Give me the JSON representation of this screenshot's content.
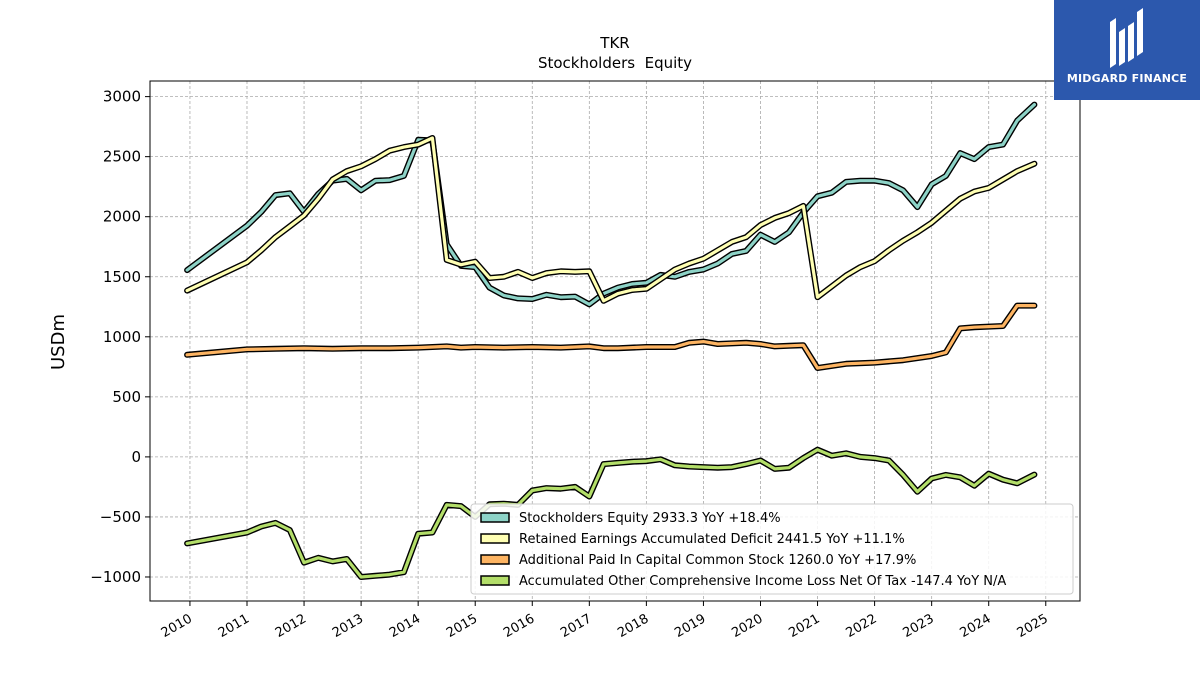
{
  "brand": {
    "name": "MIDGARD FINANCE",
    "bg_color": "#2c58ad"
  },
  "chart_data": {
    "type": "line",
    "title": "TKR",
    "subtitle": "Stockholders  Equity",
    "xlabel": "",
    "ylabel": "USDm",
    "xlim": [
      2009.3,
      2025.6
    ],
    "ylim": [
      -1200,
      3130
    ],
    "x_ticks": [
      "2010",
      "2011",
      "2012",
      "2013",
      "2014",
      "2015",
      "2016",
      "2017",
      "2018",
      "2019",
      "2020",
      "2021",
      "2022",
      "2023",
      "2024",
      "2025"
    ],
    "y_ticks": [
      3000,
      2500,
      2000,
      1500,
      1000,
      500,
      0,
      -500,
      -1000
    ],
    "y_tick_labels": [
      "3000",
      "2500",
      "2000",
      "1500",
      "1000",
      "500",
      "0",
      "−500",
      "−1000"
    ],
    "grid": true,
    "legend_position": "lower-right",
    "series": [
      {
        "name": "Stockholders Equity",
        "legend_label": "Stockholders Equity  2933.3 YoY +18.4%",
        "color": "#8dd3c7",
        "points": [
          [
            2009.95,
            1555
          ],
          [
            2011.0,
            1925
          ],
          [
            2011.25,
            2040
          ],
          [
            2011.5,
            2180
          ],
          [
            2011.75,
            2195
          ],
          [
            2012.0,
            2040
          ],
          [
            2012.25,
            2190
          ],
          [
            2012.5,
            2300
          ],
          [
            2012.75,
            2315
          ],
          [
            2013.0,
            2220
          ],
          [
            2013.25,
            2300
          ],
          [
            2013.5,
            2305
          ],
          [
            2013.75,
            2340
          ],
          [
            2014.0,
            2640
          ],
          [
            2014.25,
            2635
          ],
          [
            2014.5,
            1770
          ],
          [
            2014.75,
            1590
          ],
          [
            2015.0,
            1580
          ],
          [
            2015.25,
            1410
          ],
          [
            2015.5,
            1345
          ],
          [
            2015.75,
            1320
          ],
          [
            2016.0,
            1315
          ],
          [
            2016.25,
            1350
          ],
          [
            2016.5,
            1330
          ],
          [
            2016.75,
            1335
          ],
          [
            2017.0,
            1270
          ],
          [
            2017.25,
            1360
          ],
          [
            2017.5,
            1410
          ],
          [
            2017.75,
            1440
          ],
          [
            2018.0,
            1450
          ],
          [
            2018.25,
            1515
          ],
          [
            2018.5,
            1500
          ],
          [
            2018.75,
            1540
          ],
          [
            2019.0,
            1560
          ],
          [
            2019.25,
            1610
          ],
          [
            2019.5,
            1690
          ],
          [
            2019.75,
            1715
          ],
          [
            2020.0,
            1850
          ],
          [
            2020.25,
            1790
          ],
          [
            2020.5,
            1870
          ],
          [
            2020.75,
            2035
          ],
          [
            2021.0,
            2170
          ],
          [
            2021.25,
            2200
          ],
          [
            2021.5,
            2290
          ],
          [
            2021.75,
            2300
          ],
          [
            2022.0,
            2300
          ],
          [
            2022.25,
            2280
          ],
          [
            2022.5,
            2220
          ],
          [
            2022.75,
            2080
          ],
          [
            2023.0,
            2270
          ],
          [
            2023.25,
            2340
          ],
          [
            2023.5,
            2530
          ],
          [
            2023.75,
            2480
          ],
          [
            2024.0,
            2580
          ],
          [
            2024.25,
            2600
          ],
          [
            2024.5,
            2800
          ],
          [
            2024.8,
            2933.3
          ]
        ]
      },
      {
        "name": "Retained Earnings Accumulated Deficit",
        "legend_label": "Retained Earnings Accumulated Deficit  2441.5 YoY +11.1%",
        "color": "#ffffb3",
        "points": [
          [
            2009.95,
            1385
          ],
          [
            2011.0,
            1620
          ],
          [
            2011.25,
            1720
          ],
          [
            2011.5,
            1830
          ],
          [
            2011.75,
            1920
          ],
          [
            2012.0,
            2010
          ],
          [
            2012.25,
            2150
          ],
          [
            2012.5,
            2310
          ],
          [
            2012.75,
            2380
          ],
          [
            2013.0,
            2420
          ],
          [
            2013.25,
            2480
          ],
          [
            2013.5,
            2550
          ],
          [
            2013.75,
            2580
          ],
          [
            2014.0,
            2600
          ],
          [
            2014.25,
            2655
          ],
          [
            2014.5,
            1640
          ],
          [
            2014.75,
            1600
          ],
          [
            2015.0,
            1625
          ],
          [
            2015.25,
            1490
          ],
          [
            2015.5,
            1500
          ],
          [
            2015.75,
            1540
          ],
          [
            2016.0,
            1490
          ],
          [
            2016.25,
            1530
          ],
          [
            2016.5,
            1545
          ],
          [
            2016.75,
            1540
          ],
          [
            2017.0,
            1545
          ],
          [
            2017.25,
            1300
          ],
          [
            2017.5,
            1360
          ],
          [
            2017.75,
            1390
          ],
          [
            2018.0,
            1400
          ],
          [
            2018.25,
            1480
          ],
          [
            2018.5,
            1560
          ],
          [
            2018.75,
            1610
          ],
          [
            2019.0,
            1650
          ],
          [
            2019.25,
            1720
          ],
          [
            2019.5,
            1790
          ],
          [
            2019.75,
            1830
          ],
          [
            2020.0,
            1930
          ],
          [
            2020.25,
            1990
          ],
          [
            2020.5,
            2030
          ],
          [
            2020.75,
            2090
          ],
          [
            2021.0,
            1330
          ],
          [
            2021.25,
            1420
          ],
          [
            2021.5,
            1510
          ],
          [
            2021.75,
            1580
          ],
          [
            2022.0,
            1630
          ],
          [
            2022.25,
            1720
          ],
          [
            2022.5,
            1800
          ],
          [
            2022.75,
            1870
          ],
          [
            2023.0,
            1950
          ],
          [
            2023.25,
            2050
          ],
          [
            2023.5,
            2150
          ],
          [
            2023.75,
            2210
          ],
          [
            2024.0,
            2240
          ],
          [
            2024.25,
            2310
          ],
          [
            2024.5,
            2380
          ],
          [
            2024.8,
            2441.5
          ]
        ]
      },
      {
        "name": "Additional Paid In Capital Common Stock",
        "legend_label": "Additional Paid In Capital Common Stock  1260.0 YoY +17.9%",
        "color": "#fdb462",
        "points": [
          [
            2009.95,
            850
          ],
          [
            2011.0,
            895
          ],
          [
            2011.5,
            900
          ],
          [
            2012.0,
            905
          ],
          [
            2012.5,
            900
          ],
          [
            2013.0,
            905
          ],
          [
            2013.5,
            905
          ],
          [
            2014.0,
            910
          ],
          [
            2014.5,
            920
          ],
          [
            2014.75,
            910
          ],
          [
            2015.0,
            915
          ],
          [
            2015.5,
            910
          ],
          [
            2016.0,
            915
          ],
          [
            2016.5,
            910
          ],
          [
            2017.0,
            920
          ],
          [
            2017.25,
            905
          ],
          [
            2017.5,
            905
          ],
          [
            2018.0,
            915
          ],
          [
            2018.5,
            915
          ],
          [
            2018.75,
            950
          ],
          [
            2019.0,
            960
          ],
          [
            2019.25,
            940
          ],
          [
            2019.5,
            945
          ],
          [
            2019.75,
            950
          ],
          [
            2020.0,
            940
          ],
          [
            2020.25,
            920
          ],
          [
            2020.5,
            925
          ],
          [
            2020.75,
            930
          ],
          [
            2021.0,
            740
          ],
          [
            2021.5,
            775
          ],
          [
            2022.0,
            785
          ],
          [
            2022.5,
            805
          ],
          [
            2023.0,
            840
          ],
          [
            2023.25,
            870
          ],
          [
            2023.5,
            1070
          ],
          [
            2023.75,
            1080
          ],
          [
            2024.0,
            1085
          ],
          [
            2024.25,
            1090
          ],
          [
            2024.5,
            1260
          ],
          [
            2024.8,
            1260
          ]
        ]
      },
      {
        "name": "Accumulated Other Comprehensive Income Loss Net Of Tax",
        "legend_label": "Accumulated Other Comprehensive Income Loss Net Of Tax  -147.4 YoY N/A",
        "color": "#b3de69",
        "points": [
          [
            2009.95,
            -720
          ],
          [
            2011.0,
            -630
          ],
          [
            2011.25,
            -580
          ],
          [
            2011.5,
            -550
          ],
          [
            2011.75,
            -610
          ],
          [
            2012.0,
            -880
          ],
          [
            2012.25,
            -840
          ],
          [
            2012.5,
            -870
          ],
          [
            2012.75,
            -850
          ],
          [
            2013.0,
            -1000
          ],
          [
            2013.25,
            -990
          ],
          [
            2013.5,
            -980
          ],
          [
            2013.75,
            -960
          ],
          [
            2014.0,
            -640
          ],
          [
            2014.25,
            -630
          ],
          [
            2014.5,
            -400
          ],
          [
            2014.75,
            -410
          ],
          [
            2015.0,
            -500
          ],
          [
            2015.25,
            -395
          ],
          [
            2015.5,
            -390
          ],
          [
            2015.75,
            -400
          ],
          [
            2016.0,
            -280
          ],
          [
            2016.25,
            -260
          ],
          [
            2016.5,
            -265
          ],
          [
            2016.75,
            -250
          ],
          [
            2017.0,
            -330
          ],
          [
            2017.25,
            -60
          ],
          [
            2017.5,
            -50
          ],
          [
            2017.75,
            -40
          ],
          [
            2018.0,
            -35
          ],
          [
            2018.25,
            -20
          ],
          [
            2018.5,
            -70
          ],
          [
            2018.75,
            -80
          ],
          [
            2019.0,
            -85
          ],
          [
            2019.25,
            -90
          ],
          [
            2019.5,
            -85
          ],
          [
            2019.75,
            -60
          ],
          [
            2020.0,
            -30
          ],
          [
            2020.25,
            -100
          ],
          [
            2020.5,
            -90
          ],
          [
            2020.75,
            -10
          ],
          [
            2021.0,
            60
          ],
          [
            2021.25,
            10
          ],
          [
            2021.5,
            30
          ],
          [
            2021.75,
            0
          ],
          [
            2022.0,
            -10
          ],
          [
            2022.25,
            -30
          ],
          [
            2022.5,
            -150
          ],
          [
            2022.75,
            -290
          ],
          [
            2023.0,
            -180
          ],
          [
            2023.25,
            -150
          ],
          [
            2023.5,
            -170
          ],
          [
            2023.75,
            -240
          ],
          [
            2024.0,
            -140
          ],
          [
            2024.25,
            -190
          ],
          [
            2024.5,
            -220
          ],
          [
            2024.8,
            -147.4
          ]
        ]
      }
    ]
  }
}
